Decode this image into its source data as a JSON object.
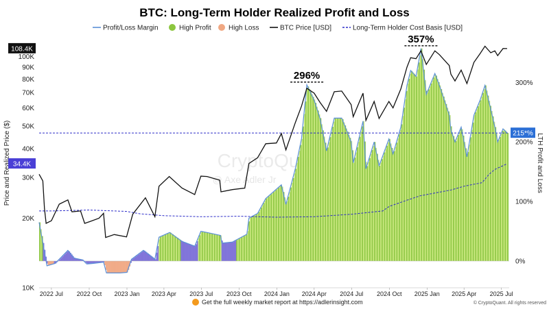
{
  "chart_data": {
    "type": "line",
    "title": "BTC: Long-Term Holder Realized Profit and Loss",
    "ylabel_left": "Price and Realized Price ($)",
    "ylabel_right": "LTH Profit and Loss",
    "y_scale_left": "log",
    "ylim_left": [
      10000,
      120000
    ],
    "ylim_right": [
      -40,
      400
    ],
    "left_ticks": [
      "10K",
      "20K",
      "30K",
      "40K",
      "50K",
      "60K",
      "70K",
      "80K",
      "90K",
      "100K"
    ],
    "left_tick_values": [
      10000,
      20000,
      30000,
      40000,
      50000,
      60000,
      70000,
      80000,
      90000,
      100000
    ],
    "right_ticks": [
      "0%",
      "100%",
      "200%",
      "300%"
    ],
    "right_tick_values": [
      0,
      100,
      200,
      300
    ],
    "x_ticks": [
      "2022 Jul",
      "2022 Oct",
      "2023 Jan",
      "2023 Apr",
      "2023 Jul",
      "2023 Oct",
      "2024 Jan",
      "2024 Apr",
      "2024 Jul",
      "2024 Oct",
      "2025 Jan",
      "2025 Apr",
      "2025 Jul"
    ],
    "x_tick_values": [
      "2022-07-01",
      "2022-10-01",
      "2023-01-01",
      "2023-04-01",
      "2023-07-01",
      "2023-10-01",
      "2024-01-01",
      "2024-04-01",
      "2024-07-01",
      "2024-10-01",
      "2025-01-01",
      "2025-04-01",
      "2025-07-01"
    ],
    "x_range": [
      "2022-06-01",
      "2025-07-20"
    ],
    "series": [
      {
        "name": "BTC Price [USD]",
        "color": "#111111",
        "points": [
          [
            "2022-06-01",
            31000
          ],
          [
            "2022-06-10",
            29000
          ],
          [
            "2022-06-14",
            22000
          ],
          [
            "2022-06-18",
            19000
          ],
          [
            "2022-07-01",
            19500
          ],
          [
            "2022-07-20",
            23000
          ],
          [
            "2022-08-10",
            24000
          ],
          [
            "2022-08-20",
            21300
          ],
          [
            "2022-09-10",
            21500
          ],
          [
            "2022-09-20",
            19000
          ],
          [
            "2022-10-01",
            19300
          ],
          [
            "2022-10-25",
            20000
          ],
          [
            "2022-11-05",
            21000
          ],
          [
            "2022-11-10",
            16500
          ],
          [
            "2022-12-01",
            17000
          ],
          [
            "2022-12-31",
            16600
          ],
          [
            "2023-01-15",
            20800
          ],
          [
            "2023-02-15",
            24500
          ],
          [
            "2023-03-10",
            20300
          ],
          [
            "2023-03-20",
            27500
          ],
          [
            "2023-04-14",
            30300
          ],
          [
            "2023-05-15",
            27000
          ],
          [
            "2023-06-15",
            25300
          ],
          [
            "2023-06-30",
            30400
          ],
          [
            "2023-07-15",
            30300
          ],
          [
            "2023-08-15",
            29200
          ],
          [
            "2023-08-18",
            26000
          ],
          [
            "2023-09-15",
            26600
          ],
          [
            "2023-10-15",
            27000
          ],
          [
            "2023-10-25",
            34500
          ],
          [
            "2023-11-15",
            36500
          ],
          [
            "2023-12-05",
            42000
          ],
          [
            "2023-12-31",
            42300
          ],
          [
            "2024-01-12",
            46500
          ],
          [
            "2024-01-23",
            39500
          ],
          [
            "2024-02-15",
            51800
          ],
          [
            "2024-03-01",
            61000
          ],
          [
            "2024-03-14",
            73000
          ],
          [
            "2024-04-01",
            69500
          ],
          [
            "2024-04-15",
            63500
          ],
          [
            "2024-05-01",
            58000
          ],
          [
            "2024-05-20",
            70500
          ],
          [
            "2024-06-07",
            71000
          ],
          [
            "2024-06-30",
            62000
          ],
          [
            "2024-07-05",
            55000
          ],
          [
            "2024-07-29",
            69500
          ],
          [
            "2024-08-05",
            53000
          ],
          [
            "2024-08-25",
            64000
          ],
          [
            "2024-09-06",
            54000
          ],
          [
            "2024-09-30",
            64000
          ],
          [
            "2024-10-10",
            60000
          ],
          [
            "2024-10-29",
            72500
          ],
          [
            "2024-11-13",
            90000
          ],
          [
            "2024-11-22",
            99000
          ],
          [
            "2024-12-05",
            98000
          ],
          [
            "2024-12-17",
            106000
          ],
          [
            "2024-12-30",
            92500
          ],
          [
            "2025-01-20",
            106000
          ],
          [
            "2025-01-31",
            102000
          ],
          [
            "2025-02-24",
            91500
          ],
          [
            "2025-02-28",
            84000
          ],
          [
            "2025-03-10",
            78500
          ],
          [
            "2025-03-25",
            87500
          ],
          [
            "2025-04-08",
            76500
          ],
          [
            "2025-04-25",
            94500
          ],
          [
            "2025-05-10",
            103000
          ],
          [
            "2025-05-22",
            111000
          ],
          [
            "2025-06-05",
            104000
          ],
          [
            "2025-06-15",
            106000
          ],
          [
            "2025-06-22",
            101000
          ],
          [
            "2025-07-05",
            108500
          ],
          [
            "2025-07-15",
            108400
          ]
        ]
      },
      {
        "name": "Long-Term Holder Cost Basis [USD]",
        "color": "#2b2bc8",
        "points": [
          [
            "2022-06-01",
            21500
          ],
          [
            "2022-07-01",
            21500
          ],
          [
            "2022-10-01",
            21700
          ],
          [
            "2023-01-01",
            21400
          ],
          [
            "2023-02-01",
            20900
          ],
          [
            "2023-04-01",
            20500
          ],
          [
            "2023-07-01",
            20300
          ],
          [
            "2023-10-01",
            20400
          ],
          [
            "2024-01-01",
            20200
          ],
          [
            "2024-04-01",
            20300
          ],
          [
            "2024-07-01",
            20800
          ],
          [
            "2024-09-15",
            21500
          ],
          [
            "2024-10-01",
            22500
          ],
          [
            "2024-11-15",
            24000
          ],
          [
            "2024-12-15",
            25000
          ],
          [
            "2025-01-15",
            25600
          ],
          [
            "2025-03-01",
            26500
          ],
          [
            "2025-04-01",
            27500
          ],
          [
            "2025-05-15",
            28500
          ],
          [
            "2025-06-01",
            31000
          ],
          [
            "2025-06-15",
            32500
          ],
          [
            "2025-07-15",
            34400
          ]
        ]
      },
      {
        "name": "Profit/Loss Margin",
        "axis": "right",
        "unit": "%",
        "color": "#5b8fd6",
        "points": [
          [
            "2022-06-01",
            65
          ],
          [
            "2022-06-14",
            15
          ],
          [
            "2022-06-20",
            -8
          ],
          [
            "2022-07-10",
            -4
          ],
          [
            "2022-08-10",
            18
          ],
          [
            "2022-08-25",
            5
          ],
          [
            "2022-09-15",
            2
          ],
          [
            "2022-09-25",
            -5
          ],
          [
            "2022-10-10",
            -4
          ],
          [
            "2022-11-05",
            -2
          ],
          [
            "2022-11-12",
            -20
          ],
          [
            "2022-12-15",
            -20
          ],
          [
            "2023-01-01",
            -19
          ],
          [
            "2023-01-12",
            3
          ],
          [
            "2023-02-10",
            18
          ],
          [
            "2023-03-10",
            3
          ],
          [
            "2023-03-20",
            40
          ],
          [
            "2023-04-15",
            48
          ],
          [
            "2023-05-15",
            33
          ],
          [
            "2023-06-15",
            25
          ],
          [
            "2023-06-30",
            50
          ],
          [
            "2023-07-15",
            48
          ],
          [
            "2023-08-17",
            43
          ],
          [
            "2023-08-20",
            30
          ],
          [
            "2023-09-15",
            32
          ],
          [
            "2023-10-20",
            45
          ],
          [
            "2023-10-25",
            72
          ],
          [
            "2023-11-15",
            80
          ],
          [
            "2023-12-05",
            105
          ],
          [
            "2024-01-12",
            128
          ],
          [
            "2024-01-23",
            95
          ],
          [
            "2024-02-15",
            155
          ],
          [
            "2024-03-01",
            205
          ],
          [
            "2024-03-14",
            296
          ],
          [
            "2024-04-01",
            270
          ],
          [
            "2024-04-15",
            240
          ],
          [
            "2024-05-01",
            185
          ],
          [
            "2024-05-20",
            240
          ],
          [
            "2024-06-07",
            240
          ],
          [
            "2024-06-30",
            200
          ],
          [
            "2024-07-05",
            165
          ],
          [
            "2024-07-29",
            235
          ],
          [
            "2024-08-05",
            155
          ],
          [
            "2024-08-25",
            200
          ],
          [
            "2024-09-06",
            160
          ],
          [
            "2024-09-30",
            205
          ],
          [
            "2024-10-10",
            180
          ],
          [
            "2024-10-29",
            225
          ],
          [
            "2024-11-13",
            295
          ],
          [
            "2024-11-22",
            320
          ],
          [
            "2024-12-05",
            310
          ],
          [
            "2024-12-17",
            357
          ],
          [
            "2024-12-30",
            280
          ],
          [
            "2025-01-20",
            315
          ],
          [
            "2025-01-31",
            295
          ],
          [
            "2025-02-24",
            245
          ],
          [
            "2025-02-28",
            220
          ],
          [
            "2025-03-10",
            200
          ],
          [
            "2025-03-25",
            225
          ],
          [
            "2025-04-08",
            175
          ],
          [
            "2025-04-25",
            245
          ],
          [
            "2025-05-10",
            270
          ],
          [
            "2025-05-22",
            295
          ],
          [
            "2025-06-05",
            255
          ],
          [
            "2025-06-15",
            225
          ],
          [
            "2025-06-22",
            200
          ],
          [
            "2025-07-05",
            222
          ],
          [
            "2025-07-15",
            215
          ]
        ]
      }
    ],
    "legend_position": "top",
    "legend": [
      {
        "label": "Profit/Loss Margin",
        "kind": "line",
        "color": "#5b8fd6"
      },
      {
        "label": "High Profit",
        "kind": "dot",
        "color": "#8cc63f"
      },
      {
        "label": "High Loss",
        "kind": "dot",
        "color": "#f0a883"
      },
      {
        "label": "BTC Price [USD]",
        "kind": "line",
        "color": "#111111"
      },
      {
        "label": "Long-Term Holder Cost Basis [USD]",
        "kind": "dash",
        "color": "#2b2bc8"
      }
    ],
    "bands": {
      "high_profit_threshold": 35,
      "high_loss_threshold": -5
    },
    "band_colors": {
      "high_profit": "#8cc63f",
      "high_profit_light": "#c8e87a",
      "mid_profit": "#7b6fd8",
      "high_loss": "#f0a883",
      "high_loss_line": "#e0572c"
    },
    "reference_line": {
      "value": 215,
      "axis": "right",
      "color": "#2b2bc8"
    },
    "annotations": [
      {
        "text": "296%",
        "date": "2024-03-14",
        "value": 296
      },
      {
        "text": "357%",
        "date": "2024-12-17",
        "value": 357
      }
    ],
    "price_badges": [
      {
        "text": "108.4K",
        "value": 108400,
        "color": "#111111"
      },
      {
        "text": "34.4K",
        "value": 34400,
        "color": "#4a3fd6"
      }
    ],
    "margin_badge": {
      "text": "215*%",
      "color": "#2b6fd6"
    },
    "grid": false,
    "watermark": [
      "CryptoQuant",
      "@ Axe Adler Jr"
    ]
  },
  "footer": {
    "text": "Get the full weekly market report at https://adlerinsight.com",
    "copyright": "© CryptoQuant. All rights reserved"
  }
}
